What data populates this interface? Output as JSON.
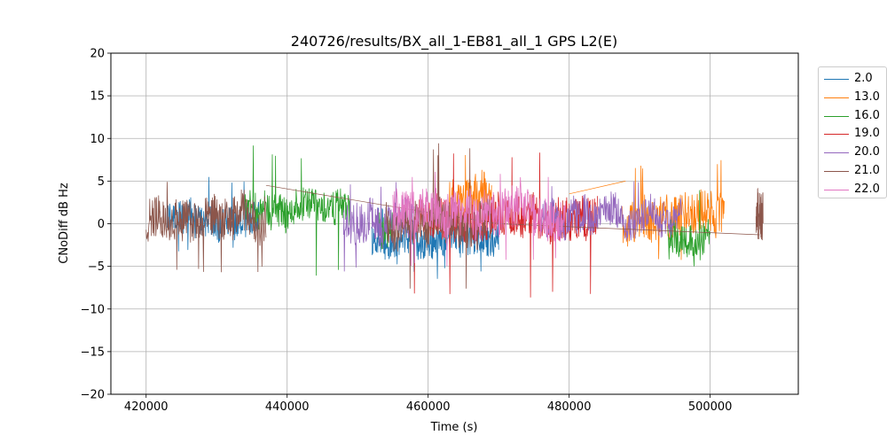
{
  "chart_data": {
    "type": "line",
    "title": "240726/results/BX_all_1-EB81_all_1 GPS L2(E)",
    "xlabel": "Time (s)",
    "ylabel": "CNoDiff dB Hz",
    "xlim": [
      415000,
      512500
    ],
    "ylim": [
      -20,
      20
    ],
    "xticks": [
      420000,
      440000,
      460000,
      480000,
      500000
    ],
    "xtick_labels": [
      "420000",
      "440000",
      "460000",
      "480000",
      "500000"
    ],
    "yticks": [
      -20,
      -15,
      -10,
      -5,
      0,
      5,
      10,
      15,
      20
    ],
    "ytick_labels": [
      "−20",
      "−15",
      "−10",
      "−5",
      "0",
      "5",
      "10",
      "15",
      "20"
    ],
    "grid": true,
    "legend_position": "outside-top-right",
    "series": [
      {
        "name": "2.0",
        "color": "#1f77b4",
        "segments": [
          {
            "x_start": 423000,
            "x_end": 436000,
            "center": 0.3,
            "amplitude": 2.2,
            "min": -3.5,
            "max": 5.5
          },
          {
            "x_start": 452000,
            "x_end": 470000,
            "center": -1.5,
            "amplitude": 2.0,
            "min": -6.5,
            "max": 2.0
          }
        ]
      },
      {
        "name": "13.0",
        "color": "#ff7f0e",
        "segments": [
          {
            "x_start": 463000,
            "x_end": 469000,
            "center": 3.0,
            "amplitude": 2.5,
            "min": 0.0,
            "max": 9.0
          },
          {
            "x_start": 487500,
            "x_end": 502000,
            "center": 0.0,
            "amplitude": 2.5,
            "min": -5.0,
            "max": 7.5
          }
        ],
        "bridge": [
          [
            480000,
            3.5
          ],
          [
            488000,
            5.0
          ]
        ]
      },
      {
        "name": "16.0",
        "color": "#2ca02c",
        "segments": [
          {
            "x_start": 434000,
            "x_end": 449000,
            "center": 1.5,
            "amplitude": 2.0,
            "min": -6.5,
            "max": 9.2
          },
          {
            "x_start": 453000,
            "x_end": 455000,
            "center": -1.0,
            "amplitude": 2.0,
            "min": -5.0,
            "max": 3.0
          },
          {
            "x_start": 494000,
            "x_end": 500000,
            "center": -1.5,
            "amplitude": 2.0,
            "min": -5.0,
            "max": 4.0
          }
        ]
      },
      {
        "name": "19.0",
        "color": "#d62728",
        "segments": [
          {
            "x_start": 458000,
            "x_end": 484000,
            "center": 0.5,
            "amplitude": 2.5,
            "min": -9.8,
            "max": 9.5
          }
        ]
      },
      {
        "name": "20.0",
        "color": "#9467bd",
        "segments": [
          {
            "x_start": 448000,
            "x_end": 458000,
            "center": 0.0,
            "amplitude": 2.5,
            "min": -6.0,
            "max": 5.0
          },
          {
            "x_start": 476000,
            "x_end": 496000,
            "center": 1.0,
            "amplitude": 2.0,
            "min": -4.0,
            "max": 5.5
          }
        ]
      },
      {
        "name": "21.0",
        "color": "#8c564b",
        "segments": [
          {
            "x_start": 420000,
            "x_end": 437000,
            "center": 0.5,
            "amplitude": 2.5,
            "min": -6.0,
            "max": 6.0
          },
          {
            "x_start": 454000,
            "x_end": 469000,
            "center": 0.0,
            "amplitude": 2.5,
            "min": -8.5,
            "max": 10.0
          },
          {
            "x_start": 506500,
            "x_end": 507500,
            "center": 1.5,
            "amplitude": 3.0,
            "min": -2.0,
            "max": 5.5
          }
        ],
        "bridge": [
          [
            437000,
            4.5
          ],
          [
            455000,
            2.0
          ],
          [
            470000,
            0.0
          ],
          [
            507000,
            -1.3
          ]
        ]
      },
      {
        "name": "22.0",
        "color": "#e377c2",
        "segments": [
          {
            "x_start": 455000,
            "x_end": 479500,
            "center": 1.5,
            "amplitude": 2.5,
            "min": -5.0,
            "max": 6.5
          }
        ]
      }
    ]
  }
}
